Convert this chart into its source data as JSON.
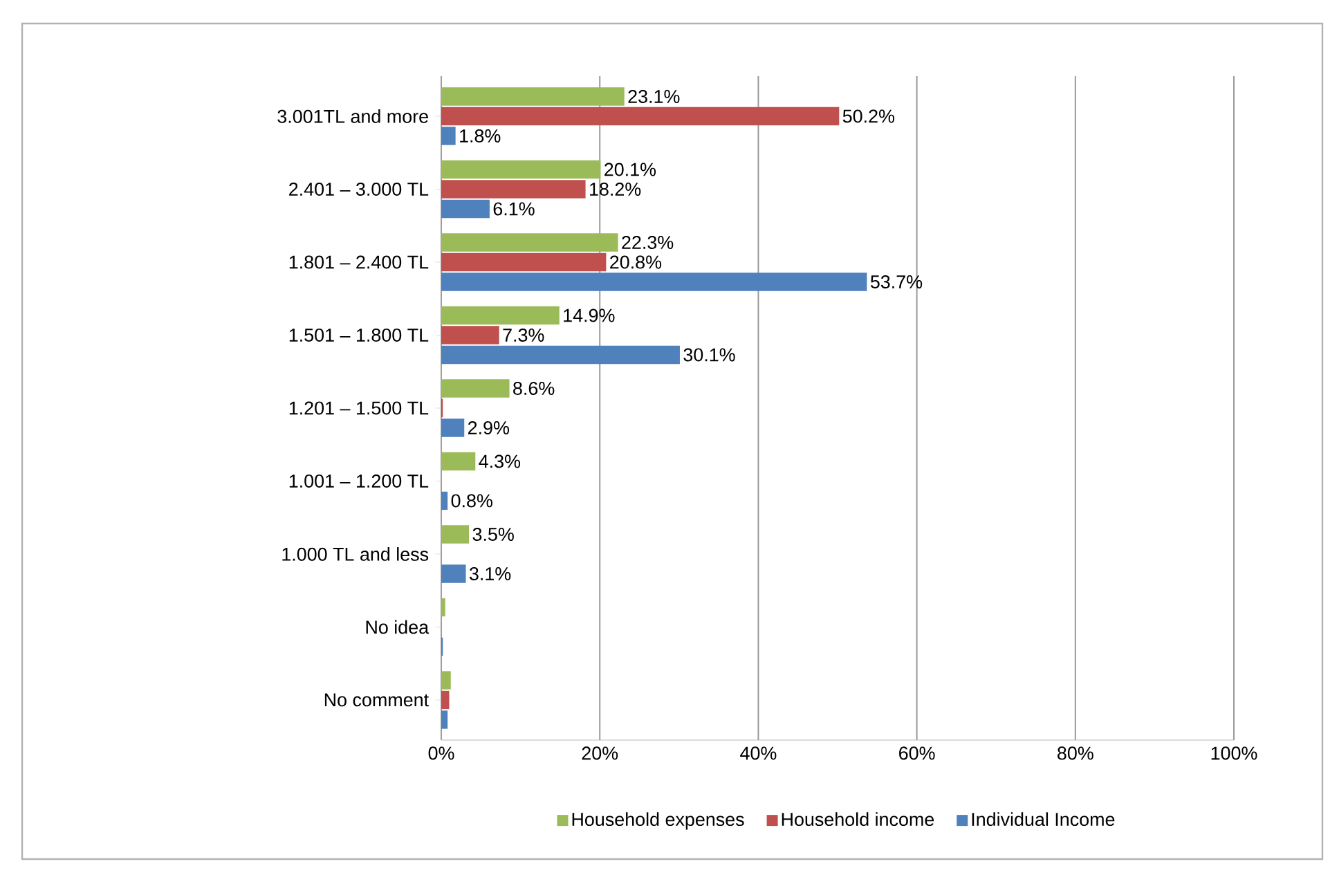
{
  "chart_data": {
    "type": "bar",
    "orientation": "horizontal",
    "categories": [
      "3.001TL and more",
      "2.401 – 3.000 TL",
      "1.801 – 2.400 TL",
      "1.501 – 1.800 TL",
      "1.201 – 1.500 TL",
      "1.001 – 1.200 TL",
      "1.000 TL and less",
      "No idea",
      "No comment"
    ],
    "series": [
      {
        "name": "Household expenses",
        "color": "#9bbb59",
        "values": [
          23.1,
          20.1,
          22.3,
          14.9,
          8.6,
          4.3,
          3.5,
          0.5,
          1.2
        ],
        "value_labels": [
          "23.1%",
          "20.1%",
          "22.3%",
          "14.9%",
          "8.6%",
          "4.3%",
          "3.5%",
          null,
          null
        ]
      },
      {
        "name": "Household income",
        "color": "#c0504d",
        "values": [
          50.2,
          18.2,
          20.8,
          7.3,
          0.2,
          0,
          0,
          0,
          1.0
        ],
        "value_labels": [
          "50.2%",
          "18.2%",
          "20.8%",
          "7.3%",
          null,
          null,
          null,
          null,
          null
        ]
      },
      {
        "name": "Individual Income",
        "color": "#4f81bd",
        "values": [
          1.8,
          6.1,
          53.7,
          30.1,
          2.9,
          0.8,
          3.1,
          0.2,
          0.8
        ],
        "value_labels": [
          "1.8%",
          "6.1%",
          "53.7%",
          "30.1%",
          "2.9%",
          "0.8%",
          "3.1%",
          null,
          null
        ]
      }
    ],
    "xlim": [
      0,
      100
    ],
    "xticks": [
      {
        "value": 0,
        "label": "0%"
      },
      {
        "value": 20,
        "label": "20%"
      },
      {
        "value": 40,
        "label": "40%"
      },
      {
        "value": 60,
        "label": "60%"
      },
      {
        "value": 80,
        "label": "80%"
      },
      {
        "value": 100,
        "label": "100%"
      }
    ],
    "grid": "x",
    "legend": "bottom"
  }
}
